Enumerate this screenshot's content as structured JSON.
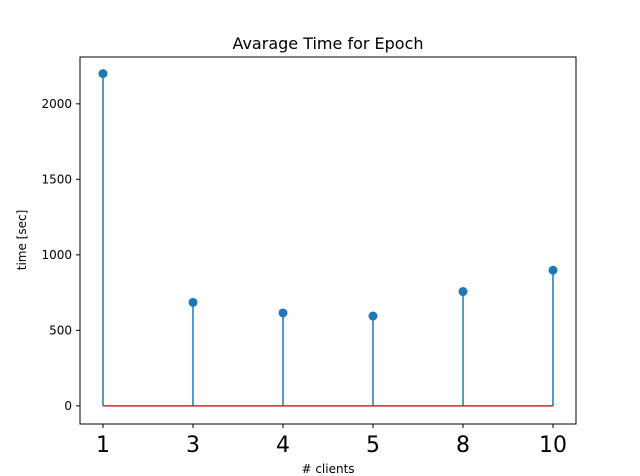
{
  "chart_data": {
    "type": "stem",
    "title": "Avarage Time for Epoch",
    "xlabel": "# clients",
    "ylabel": "time [sec]",
    "categories": [
      "1",
      "3",
      "4",
      "5",
      "8",
      "10"
    ],
    "values": [
      2200,
      685,
      615,
      595,
      757,
      898
    ],
    "ylim": [
      -120,
      2310
    ],
    "yticks": [
      0,
      500,
      1000,
      1500,
      2000
    ],
    "baseline": 0,
    "grid": false,
    "colors": {
      "stem": "#1f77b4",
      "marker": "#1f77b4",
      "baseline": "#d62728"
    }
  }
}
